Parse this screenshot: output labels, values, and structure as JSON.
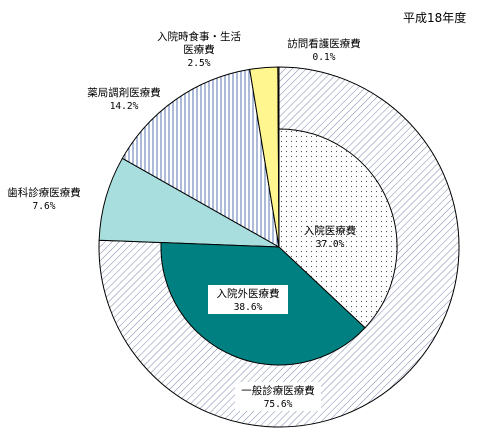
{
  "year_label": "平成18年度",
  "chart_data": {
    "type": "pie",
    "title": "",
    "start_angle_deg": 0,
    "direction": "clockwise",
    "outer_ring": {
      "slices": [
        {
          "key": "general",
          "name": "一般診療医療費",
          "value": 75.6,
          "value_label": "75.6%",
          "color": "#ffffff",
          "pattern": "diag"
        },
        {
          "key": "dental",
          "name": "歯科診療医療費",
          "value": 7.6,
          "value_label": "7.6%",
          "color": "#a8dedd",
          "pattern": "none"
        },
        {
          "key": "pharmacy",
          "name": "薬局調剤医療費",
          "value": 14.2,
          "value_label": "14.2%",
          "color": "#ffffff",
          "pattern": "vert"
        },
        {
          "key": "meals",
          "name": "入院時食事・生活\n医療費",
          "value": 2.5,
          "value_label": "2.5%",
          "color": "#fff68f",
          "pattern": "none"
        },
        {
          "key": "visiting",
          "name": "訪問看護医療費",
          "value": 0.1,
          "value_label": "0.1%",
          "color": "#ffffff",
          "pattern": "none"
        }
      ]
    },
    "inner_pie": {
      "slices": [
        {
          "key": "inpatient",
          "name": "入院医療費",
          "value": 37.0,
          "value_label": "37.0%",
          "color": "#ffffff",
          "pattern": "dots"
        },
        {
          "key": "outpatient",
          "name": "入院外医療費",
          "value": 38.6,
          "value_label": "38.6%",
          "color": "#008080",
          "pattern": "none"
        }
      ]
    }
  }
}
